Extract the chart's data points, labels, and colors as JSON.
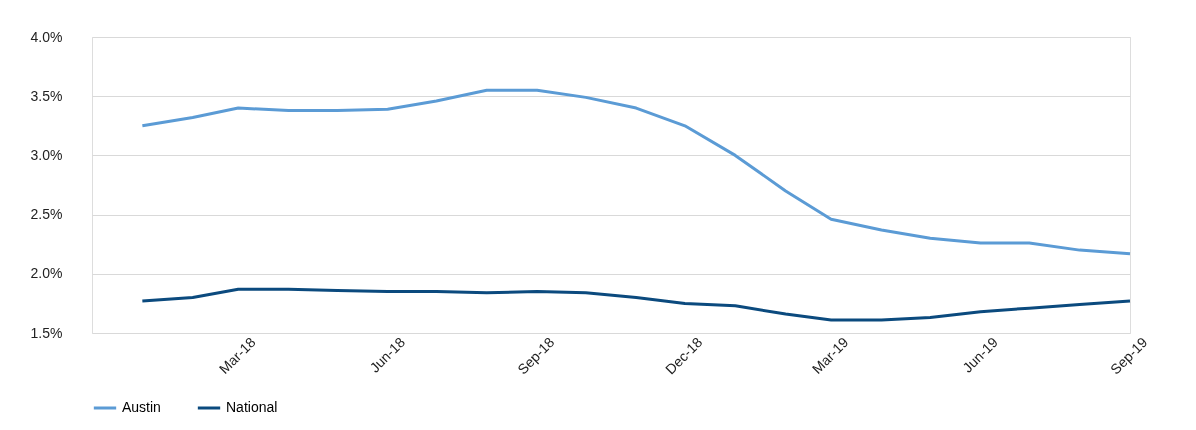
{
  "chart_data": {
    "type": "line",
    "x": [
      "2018-01",
      "2018-02",
      "2018-03",
      "2018-04",
      "2018-05",
      "2018-06",
      "2018-07",
      "2018-08",
      "2018-09",
      "2018-10",
      "2018-11",
      "2018-12",
      "2019-01",
      "2019-02",
      "2019-03",
      "2019-04",
      "2019-05",
      "2019-06",
      "2019-07",
      "2019-08",
      "2019-09"
    ],
    "series": [
      {
        "name": "Austin",
        "color": "#5b9bd5",
        "values": [
          3.25,
          3.32,
          3.4,
          3.38,
          3.38,
          3.39,
          3.46,
          3.55,
          3.55,
          3.49,
          3.4,
          3.25,
          3.0,
          2.7,
          2.46,
          2.37,
          2.3,
          2.26,
          2.26,
          2.2,
          2.17
        ]
      },
      {
        "name": "National",
        "color": "#0b4a7e",
        "values": [
          1.77,
          1.8,
          1.87,
          1.87,
          1.86,
          1.85,
          1.85,
          1.84,
          1.85,
          1.84,
          1.8,
          1.75,
          1.73,
          1.66,
          1.61,
          1.61,
          1.63,
          1.68,
          1.71,
          1.74,
          1.77
        ]
      }
    ],
    "xlim": [
      "2017-12",
      "2019-09"
    ],
    "xticks": [
      {
        "value": "2018-03",
        "label": "Mar-18"
      },
      {
        "value": "2018-06",
        "label": "Jun-18"
      },
      {
        "value": "2018-09",
        "label": "Sep-18"
      },
      {
        "value": "2018-12",
        "label": "Dec-18"
      },
      {
        "value": "2019-03",
        "label": "Mar-19"
      },
      {
        "value": "2019-06",
        "label": "Jun-19"
      },
      {
        "value": "2019-09",
        "label": "Sep-19"
      }
    ],
    "ylim": [
      1.5,
      4.0
    ],
    "yticks": [
      {
        "value": 1.5,
        "label": "1.5%"
      },
      {
        "value": 2.0,
        "label": "2.0%"
      },
      {
        "value": 2.5,
        "label": "2.5%"
      },
      {
        "value": 3.0,
        "label": "3.0%"
      },
      {
        "value": 3.5,
        "label": "3.5%"
      },
      {
        "value": 4.0,
        "label": "4.0%"
      }
    ],
    "grid": "y",
    "legend": "bottom",
    "marker": "none",
    "line_style": "solid"
  }
}
